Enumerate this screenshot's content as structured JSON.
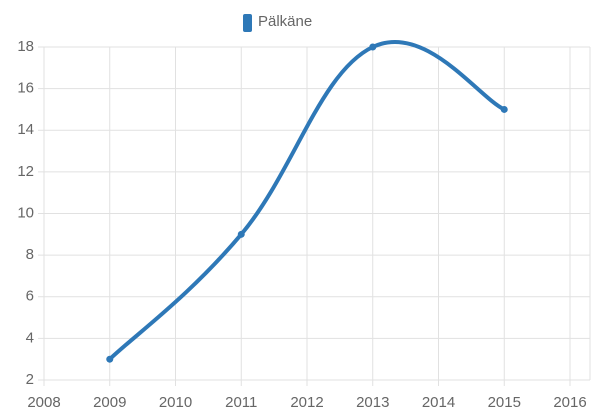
{
  "chart_data": {
    "type": "line",
    "x": [
      2009,
      2011,
      2013,
      2015
    ],
    "series": [
      {
        "name": "Pälkäne",
        "color": "#2e78b7",
        "values": [
          3,
          9,
          18,
          15
        ]
      }
    ],
    "xlim": [
      2008,
      2016
    ],
    "xticks": [
      2008,
      2009,
      2010,
      2011,
      2012,
      2013,
      2014,
      2015,
      2016
    ],
    "ylim": [
      2,
      18
    ],
    "yticks": [
      2,
      4,
      6,
      8,
      10,
      12,
      14,
      16,
      18
    ],
    "grid": true,
    "legend": "top"
  }
}
